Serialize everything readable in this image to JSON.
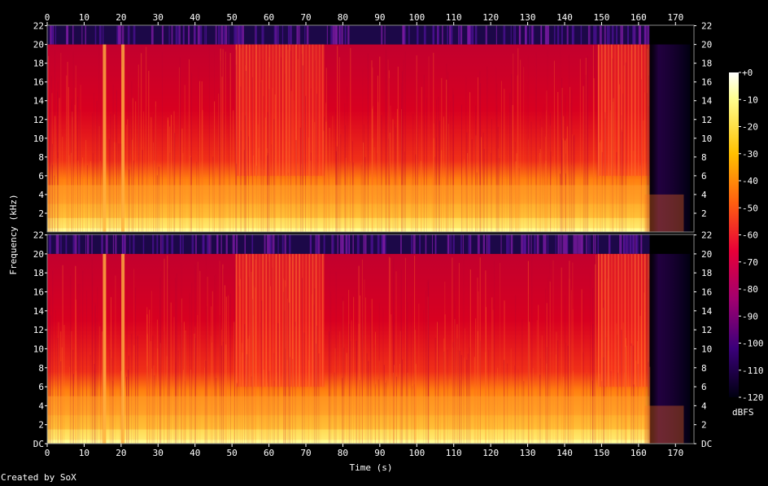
{
  "chart_data": {
    "type": "heatmap",
    "title": "",
    "xlabel": "Time (s)",
    "ylabel": "Frequency (kHz)",
    "credit": "Created by SoX",
    "x_ticks": [
      "0",
      "10",
      "20",
      "30",
      "40",
      "50",
      "60",
      "70",
      "80",
      "90",
      "100",
      "110",
      "120",
      "130",
      "140",
      "150",
      "160",
      "170"
    ],
    "xlim": [
      0,
      175
    ],
    "channels": [
      {
        "y_ticks": [
          "2",
          "4",
          "6",
          "8",
          "10",
          "12",
          "14",
          "16",
          "18",
          "20",
          "22"
        ],
        "ylim": [
          0,
          22.05
        ]
      },
      {
        "y_ticks": [
          "DC",
          "2",
          "4",
          "6",
          "8",
          "10",
          "12",
          "14",
          "16",
          "18",
          "20",
          "22"
        ],
        "ylim": [
          0,
          22.05
        ]
      }
    ],
    "colorbar": {
      "label": "dBFS",
      "ticks": [
        "+0",
        "-10",
        "-20",
        "-30",
        "-40",
        "-50",
        "-60",
        "-70",
        "-80",
        "-90",
        "-100",
        "-110",
        "-120"
      ],
      "range": [
        -120,
        0
      ]
    },
    "signal": {
      "end_time": 163,
      "lowpass_khz": 20,
      "fadeout_end": 174,
      "bright_columns_s": [
        15.5,
        20.5
      ],
      "dense_sections_s": [
        [
          51,
          75
        ],
        [
          149,
          163
        ]
      ]
    },
    "colors": {
      "background": "#000000",
      "loud": "#ffff90",
      "mid": "#ff2a1c",
      "quiet": "#2a0a5c"
    }
  }
}
